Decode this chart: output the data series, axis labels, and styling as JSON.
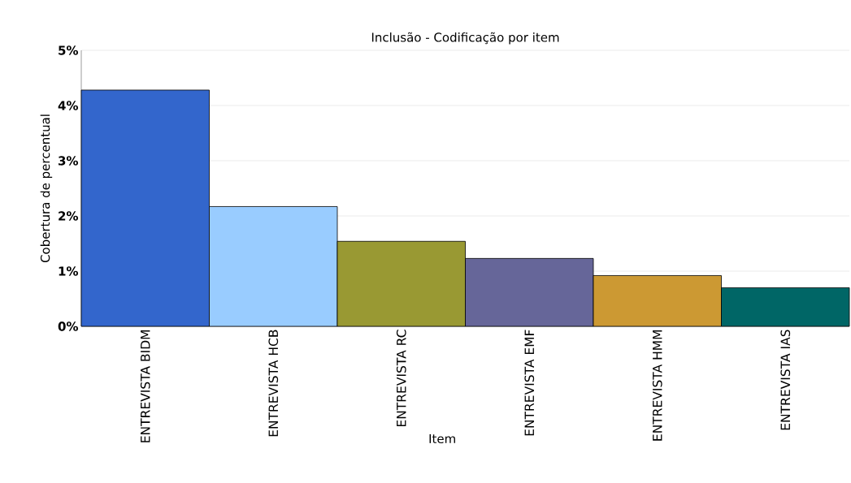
{
  "chart_data": {
    "type": "bar",
    "title": "Inclusão - Codificação por item",
    "xlabel": "Item",
    "ylabel": "Cobertura de percentual",
    "categories": [
      "ENTREVISTA BIDM",
      "ENTREVISTA HCB",
      "ENTREVISTA RC",
      "ENTREVISTA EMF",
      "ENTREVISTA HMM",
      "ENTREVISTA IAS"
    ],
    "values": [
      4.28,
      2.17,
      1.54,
      1.23,
      0.92,
      0.7
    ],
    "colors": [
      "#3366cc",
      "#99ccff",
      "#999933",
      "#666699",
      "#cc9933",
      "#006666"
    ],
    "ylim": [
      0,
      5
    ],
    "yticks": [
      {
        "value": 0,
        "label": "0%"
      },
      {
        "value": 1,
        "label": "1%"
      },
      {
        "value": 2,
        "label": "2%"
      },
      {
        "value": 3,
        "label": "3%"
      },
      {
        "value": 4,
        "label": "4%"
      },
      {
        "value": 5,
        "label": "5%"
      }
    ],
    "grid": "y"
  }
}
